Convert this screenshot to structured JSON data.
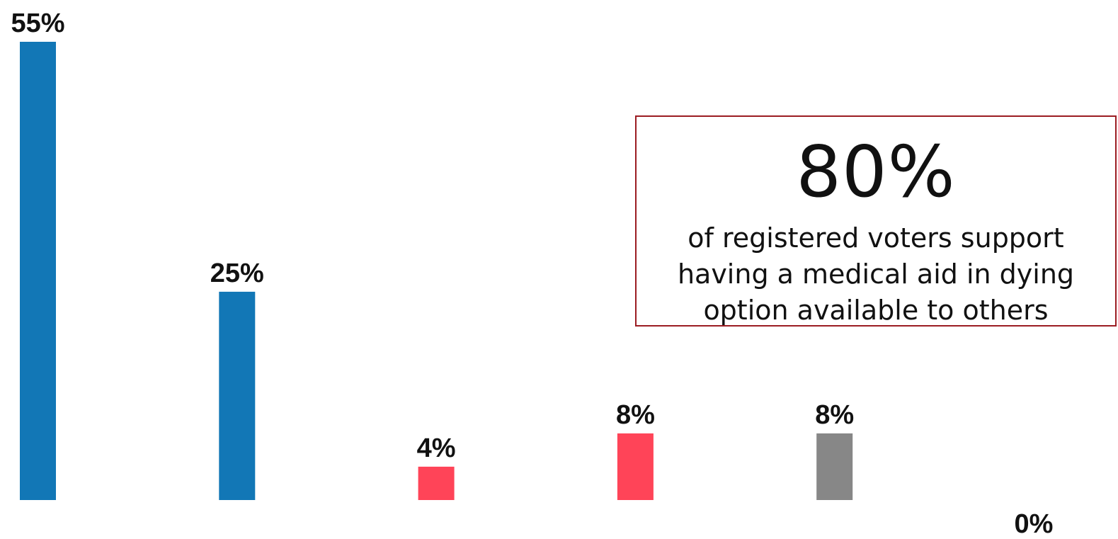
{
  "chart_data": {
    "type": "bar",
    "categories": [
      "",
      "",
      "",
      "",
      "",
      ""
    ],
    "values": [
      55,
      25,
      4,
      8,
      8,
      0
    ],
    "labels": [
      "55%",
      "25%",
      "4%",
      "8%",
      "8%",
      "0%"
    ],
    "colors": [
      "#1277b6",
      "#1277b6",
      "#ff4458",
      "#ff4458",
      "#878787",
      "#878787"
    ],
    "ylim": [
      0,
      55
    ],
    "grid": false,
    "legend": "none"
  },
  "callout": {
    "value": "80%",
    "text": "of registered voters support having a medical aid in dying option available to others",
    "border_color": "#9b1c22"
  }
}
